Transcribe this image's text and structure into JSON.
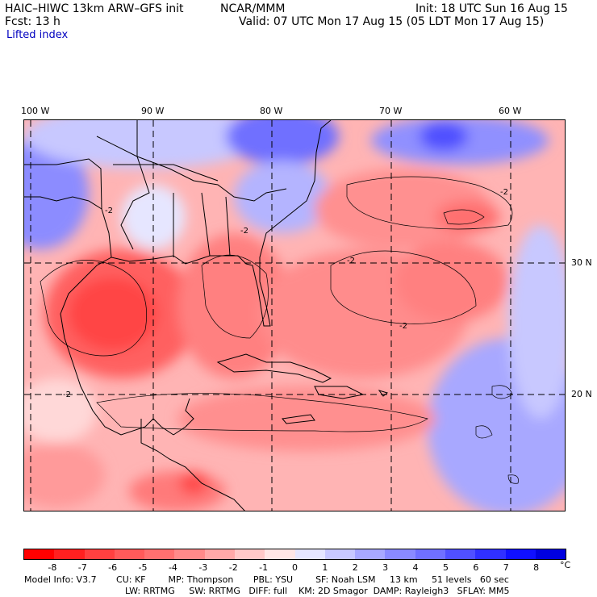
{
  "header": {
    "title_left": "HAIC–HIWC 13km ARW–GFS init",
    "title_center": "NCAR/MMM",
    "init": "Init: 18 UTC Sun 16 Aug 15",
    "fcst": "Fcst:   13 h",
    "valid": "Valid: 07 UTC Mon 17 Aug 15 (05 LDT Mon 17 Aug 15)",
    "field": "Lifted index"
  },
  "axes": {
    "lon_labels": [
      "100 W",
      "90 W",
      "80 W",
      "70 W",
      "60 W"
    ],
    "lat_labels": [
      "30 N",
      "20 N"
    ]
  },
  "colorbar": {
    "labels": [
      "-8",
      "-7",
      "-6",
      "-5",
      "-4",
      "-3",
      "-2",
      "-1",
      "0",
      "1",
      "2",
      "3",
      "4",
      "5",
      "6",
      "7",
      "8"
    ],
    "unit": "°C",
    "colors": [
      "#ff0000",
      "#ff2020",
      "#ff4040",
      "#ff5a5a",
      "#ff7070",
      "#ff8a8a",
      "#ffa8a8",
      "#ffc8c8",
      "#ffe6e6",
      "#e6e6ff",
      "#c8c8ff",
      "#a8a8ff",
      "#8a8aff",
      "#7070ff",
      "#5050ff",
      "#3030ff",
      "#1010ff",
      "#0000e0"
    ]
  },
  "footer": {
    "line1": "Model Info: V3.7       CU: KF        MP: Thompson       PBL: YSU        SF: Noah LSM     13 km     51 levels   60 sec",
    "line2": "LW: RRTMG     SW: RRTMG   DIFF: full    KM: 2D Smagor  DAMP: Rayleigh3   SFLAY: MM5"
  }
}
